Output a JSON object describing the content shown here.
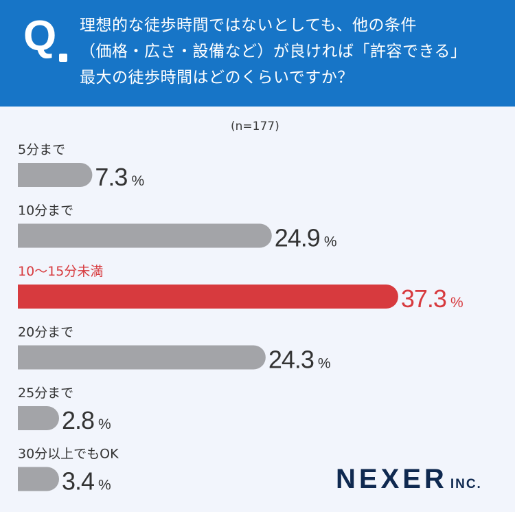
{
  "question": {
    "mark": "Q",
    "lines": [
      "理想的な徒歩時間ではないとしても、他の条件",
      "（価格・広さ・設備など）が良ければ「許容できる」",
      "最大の徒歩時間はどのくらいですか？"
    ]
  },
  "sample_note": "(n=177)",
  "logo": {
    "name": "NEXER",
    "suffix": "INC."
  },
  "colors": {
    "header_bg": "#1775c7",
    "bar_default": "#a3a4a8",
    "highlight": "#d73a3e",
    "text": "#333333",
    "logo": "#0f2950"
  },
  "chart_data": {
    "type": "bar",
    "orientation": "horizontal",
    "unit": "%",
    "categories": [
      "5分まで",
      "10分まで",
      "10〜15分未満",
      "20分まで",
      "25分まで",
      "30分以上でもOK"
    ],
    "values": [
      7.3,
      24.9,
      37.3,
      24.3,
      2.8,
      3.4
    ],
    "value_labels": [
      "7.3",
      "24.9",
      "37.3",
      "24.3",
      "2.8",
      "3.4"
    ],
    "highlight_index": 2,
    "legend": "none",
    "grid": false
  }
}
